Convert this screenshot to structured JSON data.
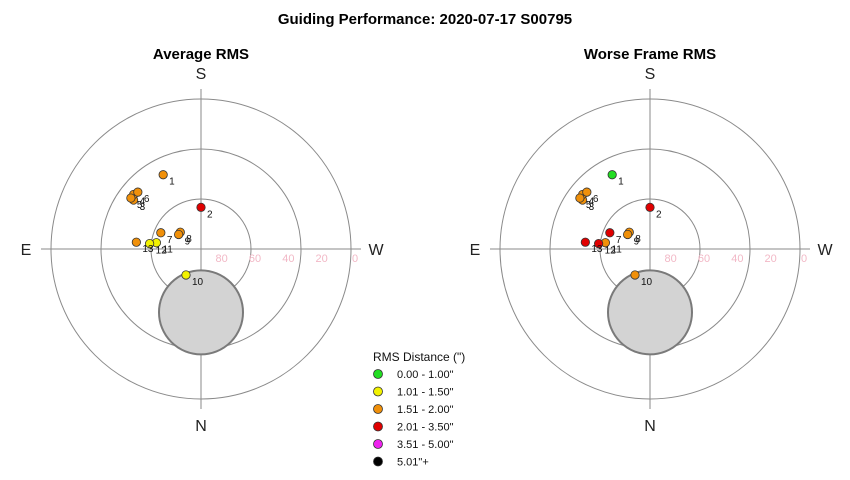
{
  "title": "Guiding Performance: 2020-07-17 S00795",
  "directions": {
    "top": "S",
    "bottom": "N",
    "left": "E",
    "right": "W"
  },
  "ring_ticks": [
    "80",
    "60",
    "40",
    "20",
    "0"
  ],
  "legend": {
    "title": "RMS Distance (\")",
    "entries": [
      {
        "label": "0.00 - 1.00\"",
        "color": "#22dd22"
      },
      {
        "label": "1.01 - 1.50\"",
        "color": "#f2f200"
      },
      {
        "label": "1.51 - 2.00\"",
        "color": "#f0900a"
      },
      {
        "label": "2.01 - 3.50\"",
        "color": "#e00000"
      },
      {
        "label": "3.51 - 5.00\"",
        "color": "#ee22ee"
      },
      {
        "label": "5.01\"+",
        "color": "#000000"
      }
    ]
  },
  "chart_data": [
    {
      "type": "scatter",
      "projection": "polar",
      "title": "Average RMS",
      "radial_axis": "altitude (deg)",
      "rlim": [
        90,
        0
      ],
      "grid": true,
      "exclusion_zone": {
        "azimuth_deg": 0,
        "altitude_deg": 67,
        "radius_deg": 13
      },
      "points": [
        {
          "label": "1",
          "az": 153,
          "alt": 40,
          "class": 2
        },
        {
          "label": "2",
          "az": 180,
          "alt": 65,
          "class": 3
        },
        {
          "label": "3",
          "az": 126,
          "alt": 40,
          "class": 2
        },
        {
          "label": "4",
          "az": 129,
          "alt": 38,
          "class": 2
        },
        {
          "label": "5",
          "az": 126,
          "alt": 38,
          "class": 2
        },
        {
          "label": "6",
          "az": 132,
          "alt": 39,
          "class": 2
        },
        {
          "label": "7",
          "az": 112,
          "alt": 64,
          "class": 2
        },
        {
          "label": "8",
          "az": 129,
          "alt": 74,
          "class": 2
        },
        {
          "label": "9",
          "az": 123,
          "alt": 74,
          "class": 2
        },
        {
          "label": "10",
          "az": 30,
          "alt": 72,
          "class": 1
        },
        {
          "label": "11",
          "az": 98,
          "alt": 63,
          "class": 1
        },
        {
          "label": "12",
          "az": 96,
          "alt": 59,
          "class": 1
        },
        {
          "label": "13",
          "az": 96,
          "alt": 51,
          "class": 2
        }
      ]
    },
    {
      "type": "scatter",
      "projection": "polar",
      "title": "Worse Frame RMS",
      "radial_axis": "altitude (deg)",
      "rlim": [
        90,
        0
      ],
      "grid": true,
      "exclusion_zone": {
        "azimuth_deg": 0,
        "altitude_deg": 67,
        "radius_deg": 13
      },
      "points": [
        {
          "label": "1",
          "az": 153,
          "alt": 40,
          "class": 0
        },
        {
          "label": "2",
          "az": 180,
          "alt": 65,
          "class": 3
        },
        {
          "label": "3",
          "az": 126,
          "alt": 40,
          "class": 2
        },
        {
          "label": "4",
          "az": 129,
          "alt": 38,
          "class": 2
        },
        {
          "label": "5",
          "az": 126,
          "alt": 38,
          "class": 2
        },
        {
          "label": "6",
          "az": 132,
          "alt": 39,
          "class": 2
        },
        {
          "label": "7",
          "az": 112,
          "alt": 64,
          "class": 3
        },
        {
          "label": "8",
          "az": 129,
          "alt": 74,
          "class": 2
        },
        {
          "label": "9",
          "az": 123,
          "alt": 74,
          "class": 2
        },
        {
          "label": "10",
          "az": 30,
          "alt": 72,
          "class": 2
        },
        {
          "label": "11",
          "az": 98,
          "alt": 63,
          "class": 2
        },
        {
          "label": "12",
          "az": 96,
          "alt": 59,
          "class": 3
        },
        {
          "label": "13",
          "az": 96,
          "alt": 51,
          "class": 3
        }
      ]
    }
  ]
}
